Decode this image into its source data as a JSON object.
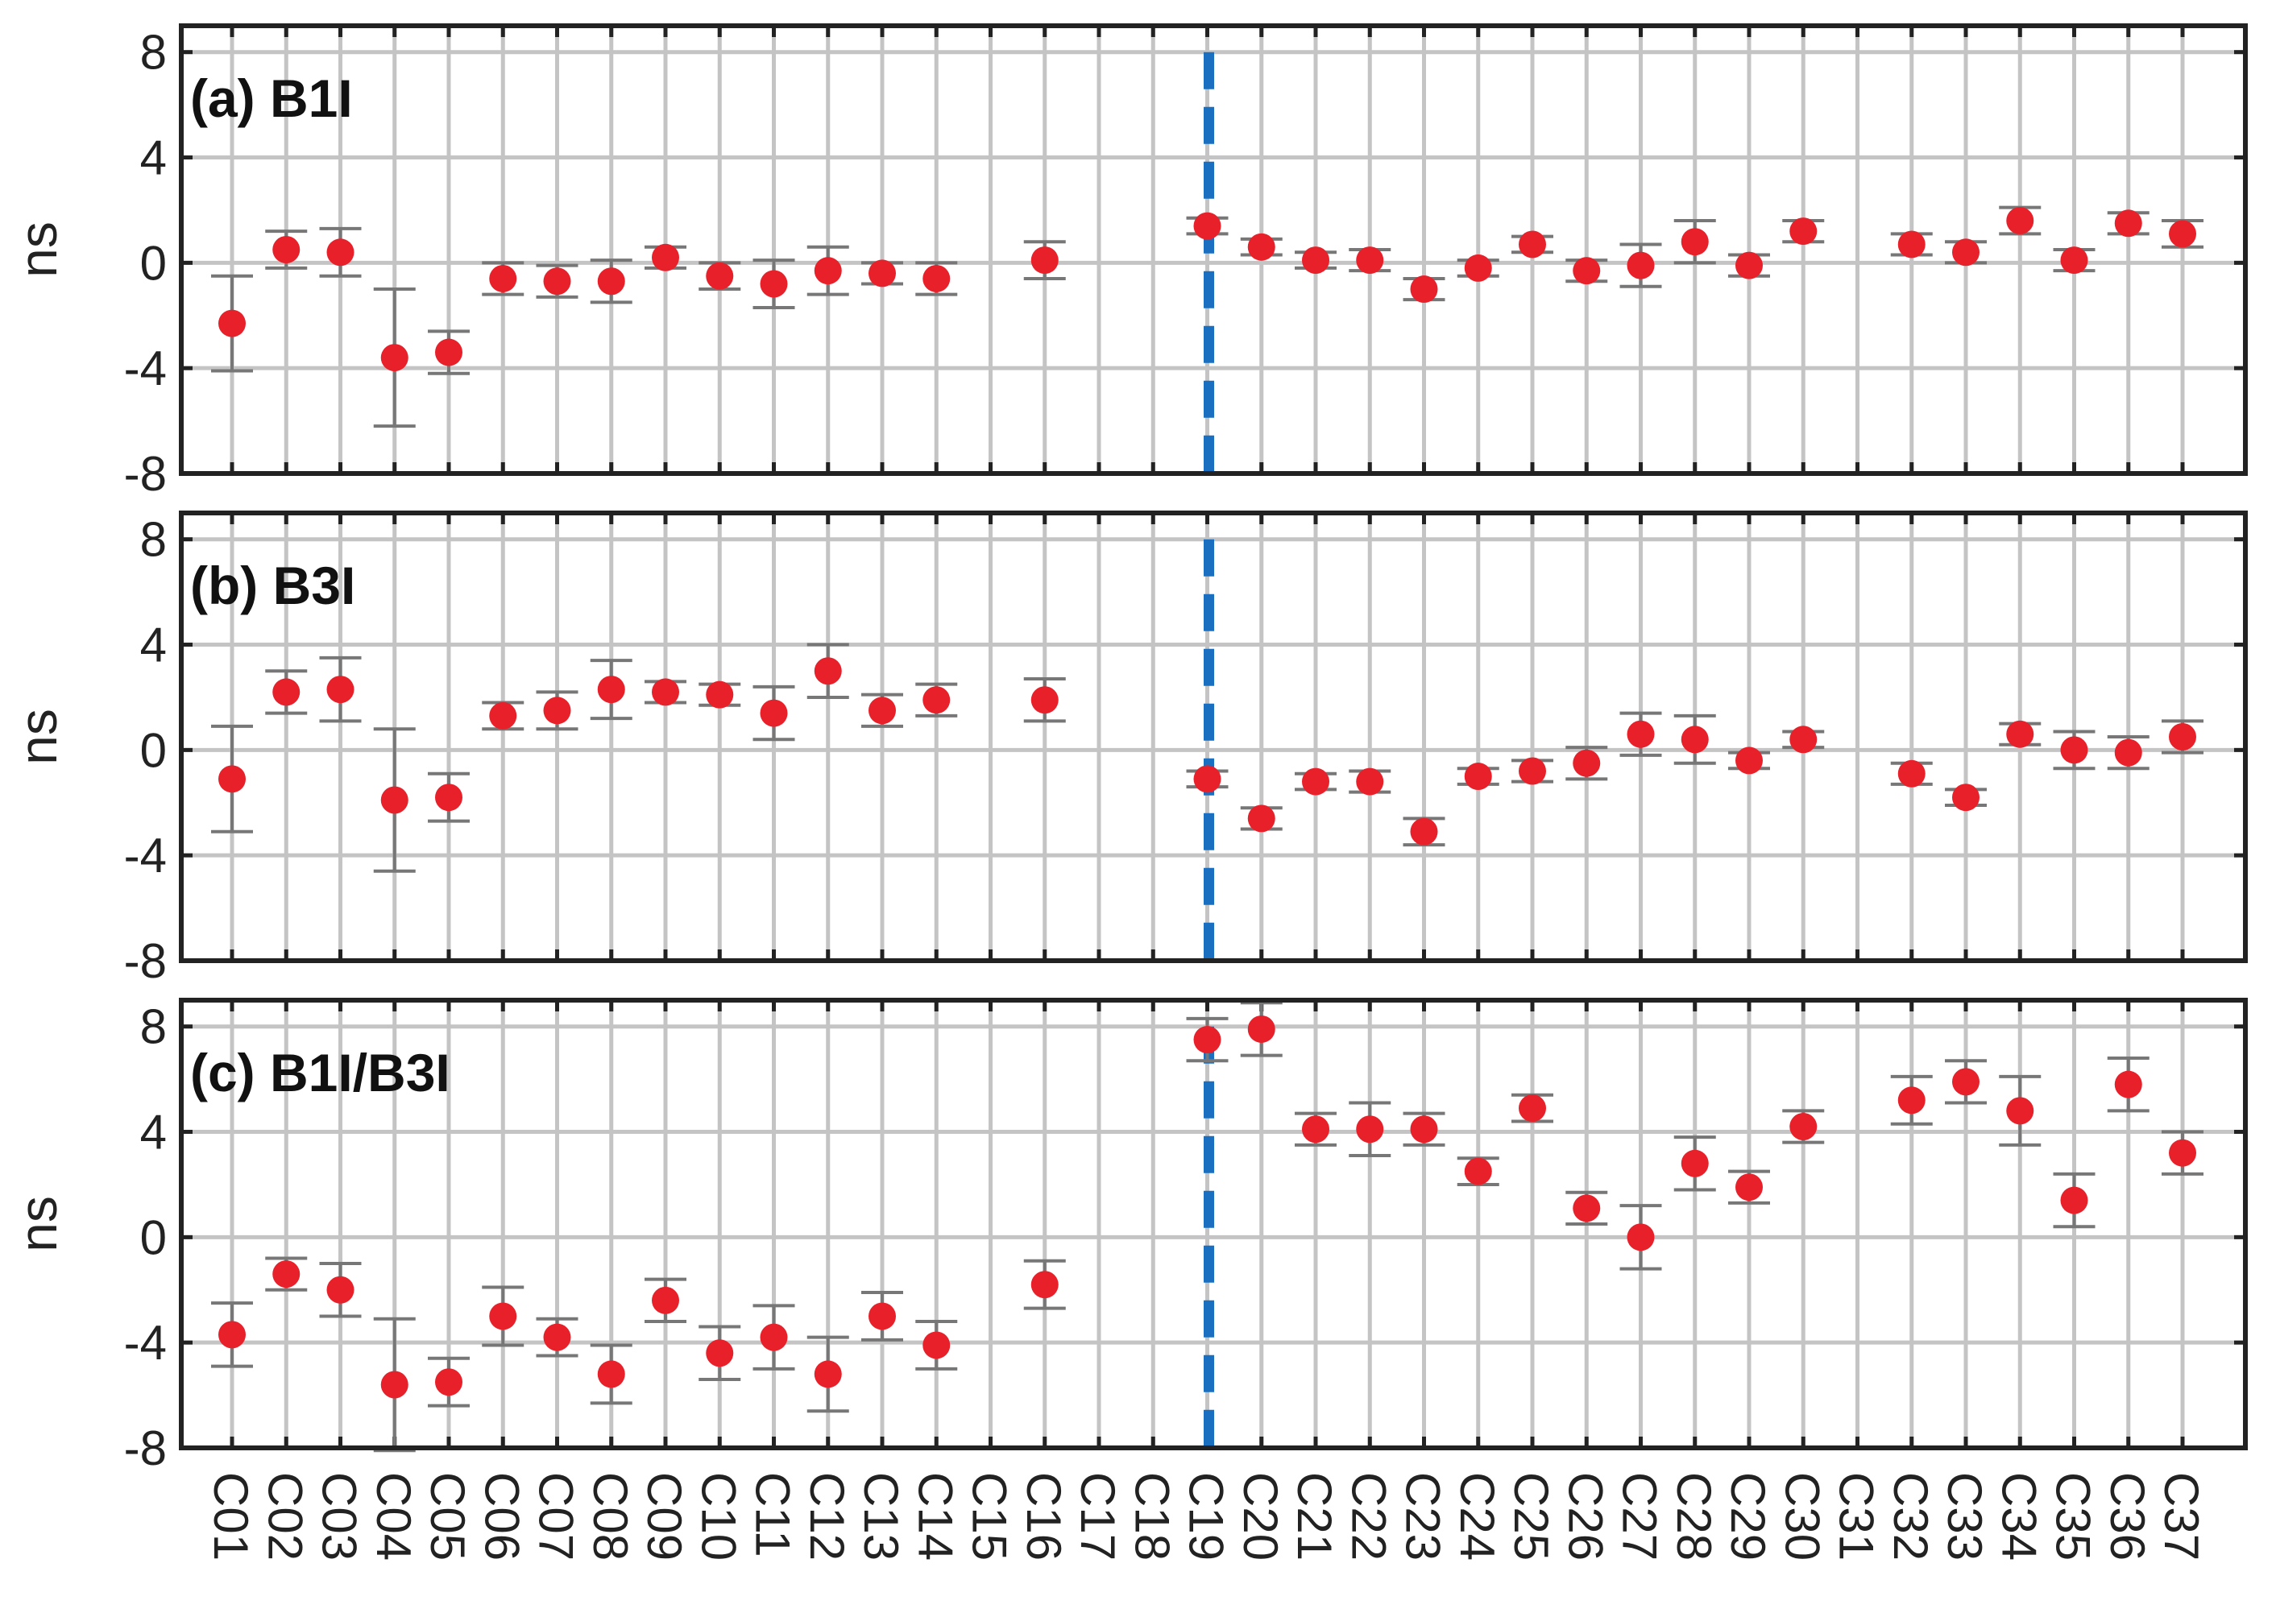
{
  "chart_data": [
    {
      "type": "scatter",
      "panel_label": "(a) B1I",
      "ylabel": "ns",
      "ylim": [
        -8,
        9
      ],
      "yticks": [
        -8,
        -4,
        0,
        4,
        8
      ],
      "grid": true,
      "reference_line": {
        "category": "C19",
        "style": "dashed",
        "color": "#1a6fc0"
      },
      "marker_color": "#e8202a",
      "errorbar_color": "#777777",
      "points": [
        {
          "sat": "C01",
          "y": -2.3,
          "err": 1.8
        },
        {
          "sat": "C02",
          "y": 0.5,
          "err": 0.7
        },
        {
          "sat": "C03",
          "y": 0.4,
          "err": 0.9
        },
        {
          "sat": "C04",
          "y": -3.6,
          "err": 2.6
        },
        {
          "sat": "C05",
          "y": -3.4,
          "err": 0.8
        },
        {
          "sat": "C06",
          "y": -0.6,
          "err": 0.6
        },
        {
          "sat": "C07",
          "y": -0.7,
          "err": 0.6
        },
        {
          "sat": "C08",
          "y": -0.7,
          "err": 0.8
        },
        {
          "sat": "C09",
          "y": 0.2,
          "err": 0.4
        },
        {
          "sat": "C10",
          "y": -0.5,
          "err": 0.5
        },
        {
          "sat": "C11",
          "y": -0.8,
          "err": 0.9
        },
        {
          "sat": "C12",
          "y": -0.3,
          "err": 0.9
        },
        {
          "sat": "C13",
          "y": -0.4,
          "err": 0.4
        },
        {
          "sat": "C14",
          "y": -0.6,
          "err": 0.6
        },
        {
          "sat": "C16",
          "y": 0.1,
          "err": 0.7
        },
        {
          "sat": "C19",
          "y": 1.4,
          "err": 0.3
        },
        {
          "sat": "C20",
          "y": 0.6,
          "err": 0.3
        },
        {
          "sat": "C21",
          "y": 0.1,
          "err": 0.3
        },
        {
          "sat": "C22",
          "y": 0.1,
          "err": 0.4
        },
        {
          "sat": "C23",
          "y": -1.0,
          "err": 0.4
        },
        {
          "sat": "C24",
          "y": -0.2,
          "err": 0.3
        },
        {
          "sat": "C25",
          "y": 0.7,
          "err": 0.3
        },
        {
          "sat": "C26",
          "y": -0.3,
          "err": 0.4
        },
        {
          "sat": "C27",
          "y": -0.1,
          "err": 0.8
        },
        {
          "sat": "C28",
          "y": 0.8,
          "err": 0.8
        },
        {
          "sat": "C29",
          "y": -0.1,
          "err": 0.4
        },
        {
          "sat": "C30",
          "y": 1.2,
          "err": 0.4
        },
        {
          "sat": "C32",
          "y": 0.7,
          "err": 0.4
        },
        {
          "sat": "C33",
          "y": 0.4,
          "err": 0.4
        },
        {
          "sat": "C34",
          "y": 1.6,
          "err": 0.5
        },
        {
          "sat": "C35",
          "y": 0.1,
          "err": 0.4
        },
        {
          "sat": "C36",
          "y": 1.5,
          "err": 0.4
        },
        {
          "sat": "C37",
          "y": 1.1,
          "err": 0.5
        }
      ]
    },
    {
      "type": "scatter",
      "panel_label": "(b) B3I",
      "ylabel": "ns",
      "ylim": [
        -8,
        9
      ],
      "yticks": [
        -8,
        -4,
        0,
        4,
        8
      ],
      "grid": true,
      "reference_line": {
        "category": "C19",
        "style": "dashed",
        "color": "#1a6fc0"
      },
      "marker_color": "#e8202a",
      "errorbar_color": "#777777",
      "points": [
        {
          "sat": "C01",
          "y": -1.1,
          "err": 2.0
        },
        {
          "sat": "C02",
          "y": 2.2,
          "err": 0.8
        },
        {
          "sat": "C03",
          "y": 2.3,
          "err": 1.2
        },
        {
          "sat": "C04",
          "y": -1.9,
          "err": 2.7
        },
        {
          "sat": "C05",
          "y": -1.8,
          "err": 0.9
        },
        {
          "sat": "C06",
          "y": 1.3,
          "err": 0.5
        },
        {
          "sat": "C07",
          "y": 1.5,
          "err": 0.7
        },
        {
          "sat": "C08",
          "y": 2.3,
          "err": 1.1
        },
        {
          "sat": "C09",
          "y": 2.2,
          "err": 0.4
        },
        {
          "sat": "C10",
          "y": 2.1,
          "err": 0.4
        },
        {
          "sat": "C11",
          "y": 1.4,
          "err": 1.0
        },
        {
          "sat": "C12",
          "y": 3.0,
          "err": 1.0
        },
        {
          "sat": "C13",
          "y": 1.5,
          "err": 0.6
        },
        {
          "sat": "C14",
          "y": 1.9,
          "err": 0.6
        },
        {
          "sat": "C16",
          "y": 1.9,
          "err": 0.8
        },
        {
          "sat": "C19",
          "y": -1.1,
          "err": 0.3
        },
        {
          "sat": "C20",
          "y": -2.6,
          "err": 0.4
        },
        {
          "sat": "C21",
          "y": -1.2,
          "err": 0.3
        },
        {
          "sat": "C22",
          "y": -1.2,
          "err": 0.4
        },
        {
          "sat": "C23",
          "y": -3.1,
          "err": 0.5
        },
        {
          "sat": "C24",
          "y": -1.0,
          "err": 0.3
        },
        {
          "sat": "C25",
          "y": -0.8,
          "err": 0.4
        },
        {
          "sat": "C26",
          "y": -0.5,
          "err": 0.6
        },
        {
          "sat": "C27",
          "y": 0.6,
          "err": 0.8
        },
        {
          "sat": "C28",
          "y": 0.4,
          "err": 0.9
        },
        {
          "sat": "C29",
          "y": -0.4,
          "err": 0.3
        },
        {
          "sat": "C30",
          "y": 0.4,
          "err": 0.3
        },
        {
          "sat": "C32",
          "y": -0.9,
          "err": 0.4
        },
        {
          "sat": "C33",
          "y": -1.8,
          "err": 0.3
        },
        {
          "sat": "C34",
          "y": 0.6,
          "err": 0.4
        },
        {
          "sat": "C35",
          "y": 0.0,
          "err": 0.7
        },
        {
          "sat": "C36",
          "y": -0.1,
          "err": 0.6
        },
        {
          "sat": "C37",
          "y": 0.5,
          "err": 0.6
        }
      ]
    },
    {
      "type": "scatter",
      "panel_label": "(c) B1I/B3I",
      "ylabel": "ns",
      "ylim": [
        -8,
        9
      ],
      "yticks": [
        -8,
        -4,
        0,
        4,
        8
      ],
      "grid": true,
      "reference_line": {
        "category": "C19",
        "style": "dashed",
        "color": "#1a6fc0"
      },
      "marker_color": "#e8202a",
      "errorbar_color": "#777777",
      "points": [
        {
          "sat": "C01",
          "y": -3.7,
          "err": 1.2
        },
        {
          "sat": "C02",
          "y": -1.4,
          "err": 0.6
        },
        {
          "sat": "C03",
          "y": -2.0,
          "err": 1.0
        },
        {
          "sat": "C04",
          "y": -5.6,
          "err": 2.5
        },
        {
          "sat": "C05",
          "y": -5.5,
          "err": 0.9
        },
        {
          "sat": "C06",
          "y": -3.0,
          "err": 1.1
        },
        {
          "sat": "C07",
          "y": -3.8,
          "err": 0.7
        },
        {
          "sat": "C08",
          "y": -5.2,
          "err": 1.1
        },
        {
          "sat": "C09",
          "y": -2.4,
          "err": 0.8
        },
        {
          "sat": "C10",
          "y": -4.4,
          "err": 1.0
        },
        {
          "sat": "C11",
          "y": -3.8,
          "err": 1.2
        },
        {
          "sat": "C12",
          "y": -5.2,
          "err": 1.4
        },
        {
          "sat": "C13",
          "y": -3.0,
          "err": 0.9
        },
        {
          "sat": "C14",
          "y": -4.1,
          "err": 0.9
        },
        {
          "sat": "C16",
          "y": -1.8,
          "err": 0.9
        },
        {
          "sat": "C19",
          "y": 7.5,
          "err": 0.8
        },
        {
          "sat": "C20",
          "y": 7.9,
          "err": 1.0
        },
        {
          "sat": "C21",
          "y": 4.1,
          "err": 0.6
        },
        {
          "sat": "C22",
          "y": 4.1,
          "err": 1.0
        },
        {
          "sat": "C23",
          "y": 4.1,
          "err": 0.6
        },
        {
          "sat": "C24",
          "y": 2.5,
          "err": 0.5
        },
        {
          "sat": "C25",
          "y": 4.9,
          "err": 0.5
        },
        {
          "sat": "C26",
          "y": 1.1,
          "err": 0.6
        },
        {
          "sat": "C27",
          "y": 0.0,
          "err": 1.2
        },
        {
          "sat": "C28",
          "y": 2.8,
          "err": 1.0
        },
        {
          "sat": "C29",
          "y": 1.9,
          "err": 0.6
        },
        {
          "sat": "C30",
          "y": 4.2,
          "err": 0.6
        },
        {
          "sat": "C32",
          "y": 5.2,
          "err": 0.9
        },
        {
          "sat": "C33",
          "y": 5.9,
          "err": 0.8
        },
        {
          "sat": "C34",
          "y": 4.8,
          "err": 1.3
        },
        {
          "sat": "C35",
          "y": 1.4,
          "err": 1.0
        },
        {
          "sat": "C36",
          "y": 5.8,
          "err": 1.0
        },
        {
          "sat": "C37",
          "y": 3.2,
          "err": 0.8
        }
      ]
    }
  ],
  "categories": [
    "C01",
    "C02",
    "C03",
    "C04",
    "C05",
    "C06",
    "C07",
    "C08",
    "C09",
    "C10",
    "C11",
    "C12",
    "C13",
    "C14",
    "C15",
    "C16",
    "C17",
    "C18",
    "C19",
    "C20",
    "C21",
    "C22",
    "C23",
    "C24",
    "C25",
    "C26",
    "C27",
    "C28",
    "C29",
    "C30",
    "C31",
    "C32",
    "C33",
    "C34",
    "C35",
    "C36",
    "C37"
  ]
}
